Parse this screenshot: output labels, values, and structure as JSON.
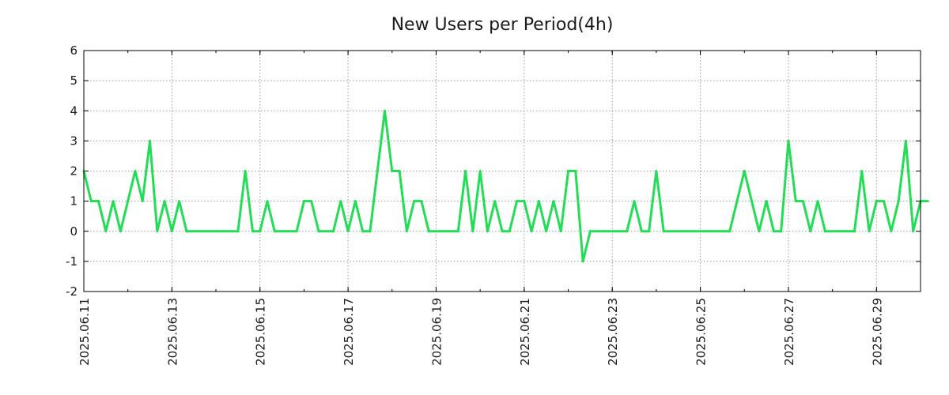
{
  "chart_data": {
    "type": "line",
    "title": "New Users per Period(4h)",
    "xlabel": "",
    "ylabel": "",
    "ylim": [
      -2,
      6
    ],
    "yticks": [
      -2,
      -1,
      0,
      1,
      2,
      3,
      4,
      5,
      6
    ],
    "x_range_days": [
      0,
      19
    ],
    "x_unit": "days since 2025.06.11 (4h periods)",
    "xtick_labels": [
      "2025.06.11",
      "2025.06.13",
      "2025.06.15",
      "2025.06.17",
      "2025.06.19",
      "2025.06.21",
      "2025.06.23",
      "2025.06.25",
      "2025.06.27",
      "2025.06.29"
    ],
    "xtick_days": [
      0,
      2,
      4,
      6,
      8,
      10,
      12,
      14,
      16,
      18
    ],
    "grid": true,
    "series": [
      {
        "name": "New Users",
        "color": "#22dd55",
        "values": [
          2,
          1,
          1,
          0,
          1,
          0,
          1,
          2,
          1,
          3,
          0,
          1,
          0,
          1,
          0,
          0,
          0,
          0,
          0,
          0,
          0,
          0,
          2,
          0,
          0,
          1,
          0,
          0,
          0,
          0,
          1,
          1,
          0,
          0,
          0,
          1,
          0,
          1,
          0,
          0,
          2,
          4,
          2,
          2,
          0,
          1,
          1,
          0,
          0,
          0,
          0,
          0,
          2,
          0,
          2,
          0,
          1,
          0,
          0,
          1,
          1,
          0,
          1,
          0,
          1,
          0,
          2,
          2,
          -1,
          0,
          0,
          0,
          0,
          0,
          0,
          1,
          0,
          0,
          2,
          0,
          0,
          0,
          0,
          0,
          0,
          0,
          0,
          0,
          0,
          1,
          2,
          1,
          0,
          1,
          0,
          0,
          3,
          1,
          1,
          0,
          1,
          0,
          0,
          0,
          0,
          0,
          2,
          0,
          1,
          1,
          0,
          1,
          3,
          0,
          1,
          1
        ]
      }
    ]
  }
}
